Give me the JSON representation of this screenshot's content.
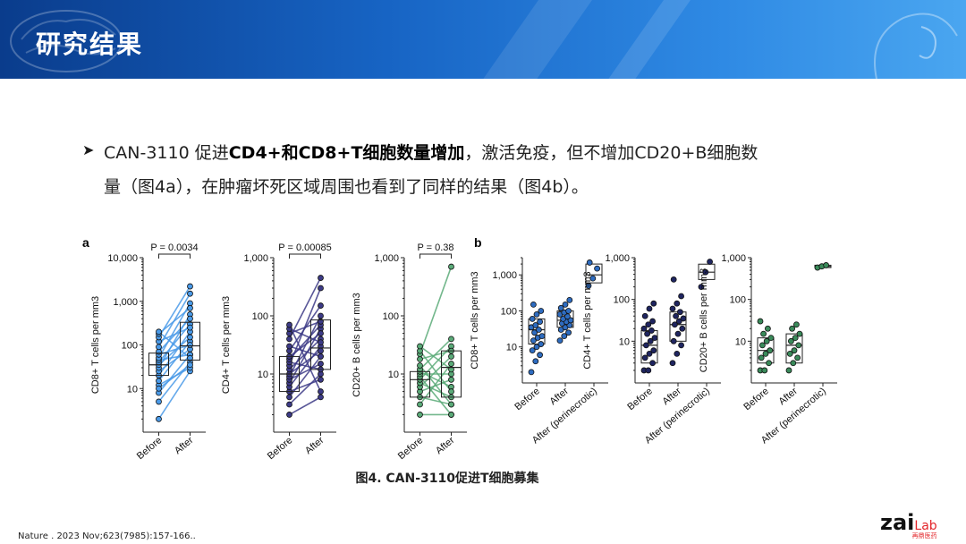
{
  "header": {
    "title": "研究结果"
  },
  "bullet": {
    "line1_prefix": "CAN-3110 促进",
    "line1_bold": "CD4+和CD8+T细胞数量增加",
    "line1_suffix": "，激活免疫，但不增加CD20+B细胞数",
    "line2": "量（图4a），在肿瘤坏死区域周围也看到了同样的结果（图4b）。"
  },
  "figure": {
    "panel_a_label": "a",
    "panel_b_label": "b",
    "caption": "图4. CAN-3110促进T细胞募集"
  },
  "chart_data": [
    {
      "type": "line",
      "panel": "a",
      "ylabel": "CD8+ T cells per mm3",
      "ylim": [
        1,
        10000
      ],
      "yscale": "log",
      "y_tick_labels": [
        "10",
        "100",
        "1,000",
        "10,000"
      ],
      "categories": [
        "Before",
        "After"
      ],
      "pvalue_label": "P = 0.0034",
      "color": "#4a9ae8",
      "box": [
        {
          "q1": 20,
          "median": 35,
          "q3": 65
        },
        {
          "q1": 45,
          "median": 95,
          "q3": 330
        }
      ],
      "pairs": [
        [
          2,
          25
        ],
        [
          5,
          40
        ],
        [
          8,
          60
        ],
        [
          12,
          30
        ],
        [
          15,
          120
        ],
        [
          20,
          200
        ],
        [
          25,
          80
        ],
        [
          30,
          500
        ],
        [
          35,
          150
        ],
        [
          40,
          300
        ],
        [
          45,
          60
        ],
        [
          50,
          900
        ],
        [
          60,
          100
        ],
        [
          70,
          400
        ],
        [
          90,
          1500
        ],
        [
          120,
          250
        ],
        [
          150,
          2200
        ],
        [
          180,
          700
        ],
        [
          200,
          50
        ],
        [
          10,
          35
        ]
      ]
    },
    {
      "type": "line",
      "panel": "a",
      "ylabel": "CD4+ T cells per mm3",
      "ylim": [
        1,
        1000
      ],
      "yscale": "log",
      "y_tick_labels": [
        "10",
        "100",
        "1,000"
      ],
      "categories": [
        "Before",
        "After"
      ],
      "pvalue_label": "P = 0.00085",
      "color": "#3c3a86",
      "box": [
        {
          "q1": 5,
          "median": 10,
          "q3": 20
        },
        {
          "q1": 12,
          "median": 28,
          "q3": 85
        }
      ],
      "pairs": [
        [
          2,
          4
        ],
        [
          3,
          10
        ],
        [
          4,
          20
        ],
        [
          5,
          8
        ],
        [
          6,
          30
        ],
        [
          7,
          60
        ],
        [
          8,
          15
        ],
        [
          9,
          100
        ],
        [
          10,
          25
        ],
        [
          12,
          40
        ],
        [
          14,
          300
        ],
        [
          16,
          12
        ],
        [
          18,
          70
        ],
        [
          20,
          50
        ],
        [
          25,
          150
        ],
        [
          30,
          20
        ],
        [
          40,
          450
        ],
        [
          50,
          80
        ],
        [
          60,
          35
        ],
        [
          70,
          5
        ]
      ]
    },
    {
      "type": "line",
      "panel": "a",
      "ylabel": "CD20+ B cells per mm3",
      "ylim": [
        1,
        1000
      ],
      "yscale": "log",
      "y_tick_labels": [
        "10",
        "100",
        "1,000"
      ],
      "categories": [
        "Before",
        "After"
      ],
      "pvalue_label": "P = 0.38",
      "color": "#5aaa78",
      "box": [
        {
          "q1": 4,
          "median": 8,
          "q3": 11
        },
        {
          "q1": 4,
          "median": 13,
          "q3": 25
        }
      ],
      "pairs": [
        [
          2,
          2
        ],
        [
          3,
          15
        ],
        [
          4,
          3
        ],
        [
          5,
          8
        ],
        [
          6,
          20
        ],
        [
          7,
          4
        ],
        [
          8,
          30
        ],
        [
          9,
          2
        ],
        [
          10,
          10
        ],
        [
          11,
          6
        ],
        [
          12,
          40
        ],
        [
          14,
          3
        ],
        [
          18,
          25
        ],
        [
          22,
          700
        ],
        [
          25,
          5
        ],
        [
          30,
          12
        ]
      ]
    },
    {
      "type": "scatter",
      "panel": "b",
      "ylabel": "CD8+ T cells per mm3",
      "ylim": [
        1,
        3000
      ],
      "yscale": "log",
      "y_tick_labels": [
        "10",
        "100",
        "1,000"
      ],
      "categories": [
        "Before",
        "After",
        "After (perinecrotic)"
      ],
      "color": "#2e6cc0",
      "box": [
        {
          "q1": 12,
          "median": 30,
          "q3": 60
        },
        {
          "q1": 35,
          "median": 55,
          "q3": 100
        },
        {
          "q1": 600,
          "median": 1000,
          "q3": 2000
        }
      ],
      "points": [
        [
          2,
          4,
          6,
          8,
          10,
          12,
          15,
          18,
          20,
          25,
          30,
          35,
          40,
          50,
          60,
          80,
          100,
          150
        ],
        [
          15,
          20,
          25,
          30,
          35,
          40,
          45,
          50,
          55,
          60,
          70,
          80,
          90,
          100,
          120,
          150,
          200
        ],
        [
          500,
          800,
          1500,
          2200
        ]
      ]
    },
    {
      "type": "scatter",
      "panel": "b",
      "ylabel": "CD4+ T cells per mm3",
      "ylim": [
        1,
        1000
      ],
      "yscale": "log",
      "y_tick_labels": [
        "10",
        "100",
        "1,000"
      ],
      "categories": [
        "Before",
        "After",
        "After (perinecrotic)"
      ],
      "color": "#1f2560",
      "box": [
        {
          "q1": 3,
          "median": 8,
          "q3": 18
        },
        {
          "q1": 10,
          "median": 25,
          "q3": 50
        },
        {
          "q1": 300,
          "median": 450,
          "q3": 700
        }
      ],
      "points": [
        [
          2,
          2,
          3,
          4,
          5,
          6,
          8,
          10,
          12,
          15,
          18,
          20,
          25,
          30,
          40,
          60,
          80
        ],
        [
          3,
          5,
          8,
          10,
          15,
          20,
          25,
          30,
          35,
          40,
          50,
          60,
          80,
          120,
          300
        ],
        [
          200,
          450,
          800
        ]
      ]
    },
    {
      "type": "scatter",
      "panel": "b",
      "ylabel": "CD20+ B cells per mm3",
      "ylim": [
        1,
        1000
      ],
      "yscale": "log",
      "y_tick_labels": [
        "10",
        "100",
        "1,000"
      ],
      "categories": [
        "Before",
        "After",
        "After (perinecrotic)"
      ],
      "color": "#3a8a5a",
      "box": [
        {
          "q1": 3,
          "median": 6,
          "q3": 12
        },
        {
          "q1": 3,
          "median": 8,
          "q3": 15
        },
        {
          "q1": 580,
          "median": 620,
          "q3": 660
        }
      ],
      "points": [
        [
          2,
          2,
          3,
          4,
          5,
          6,
          8,
          10,
          12,
          15,
          20,
          30
        ],
        [
          2,
          3,
          4,
          5,
          6,
          8,
          10,
          12,
          15,
          20,
          25
        ],
        [
          580,
          620,
          660
        ]
      ]
    }
  ],
  "footer": {
    "reference": "Nature . 2023 Nov;623(7985):157-166.."
  },
  "logo": {
    "main": "zai",
    "accent": "Lab",
    "sub": "再鼎医药"
  }
}
